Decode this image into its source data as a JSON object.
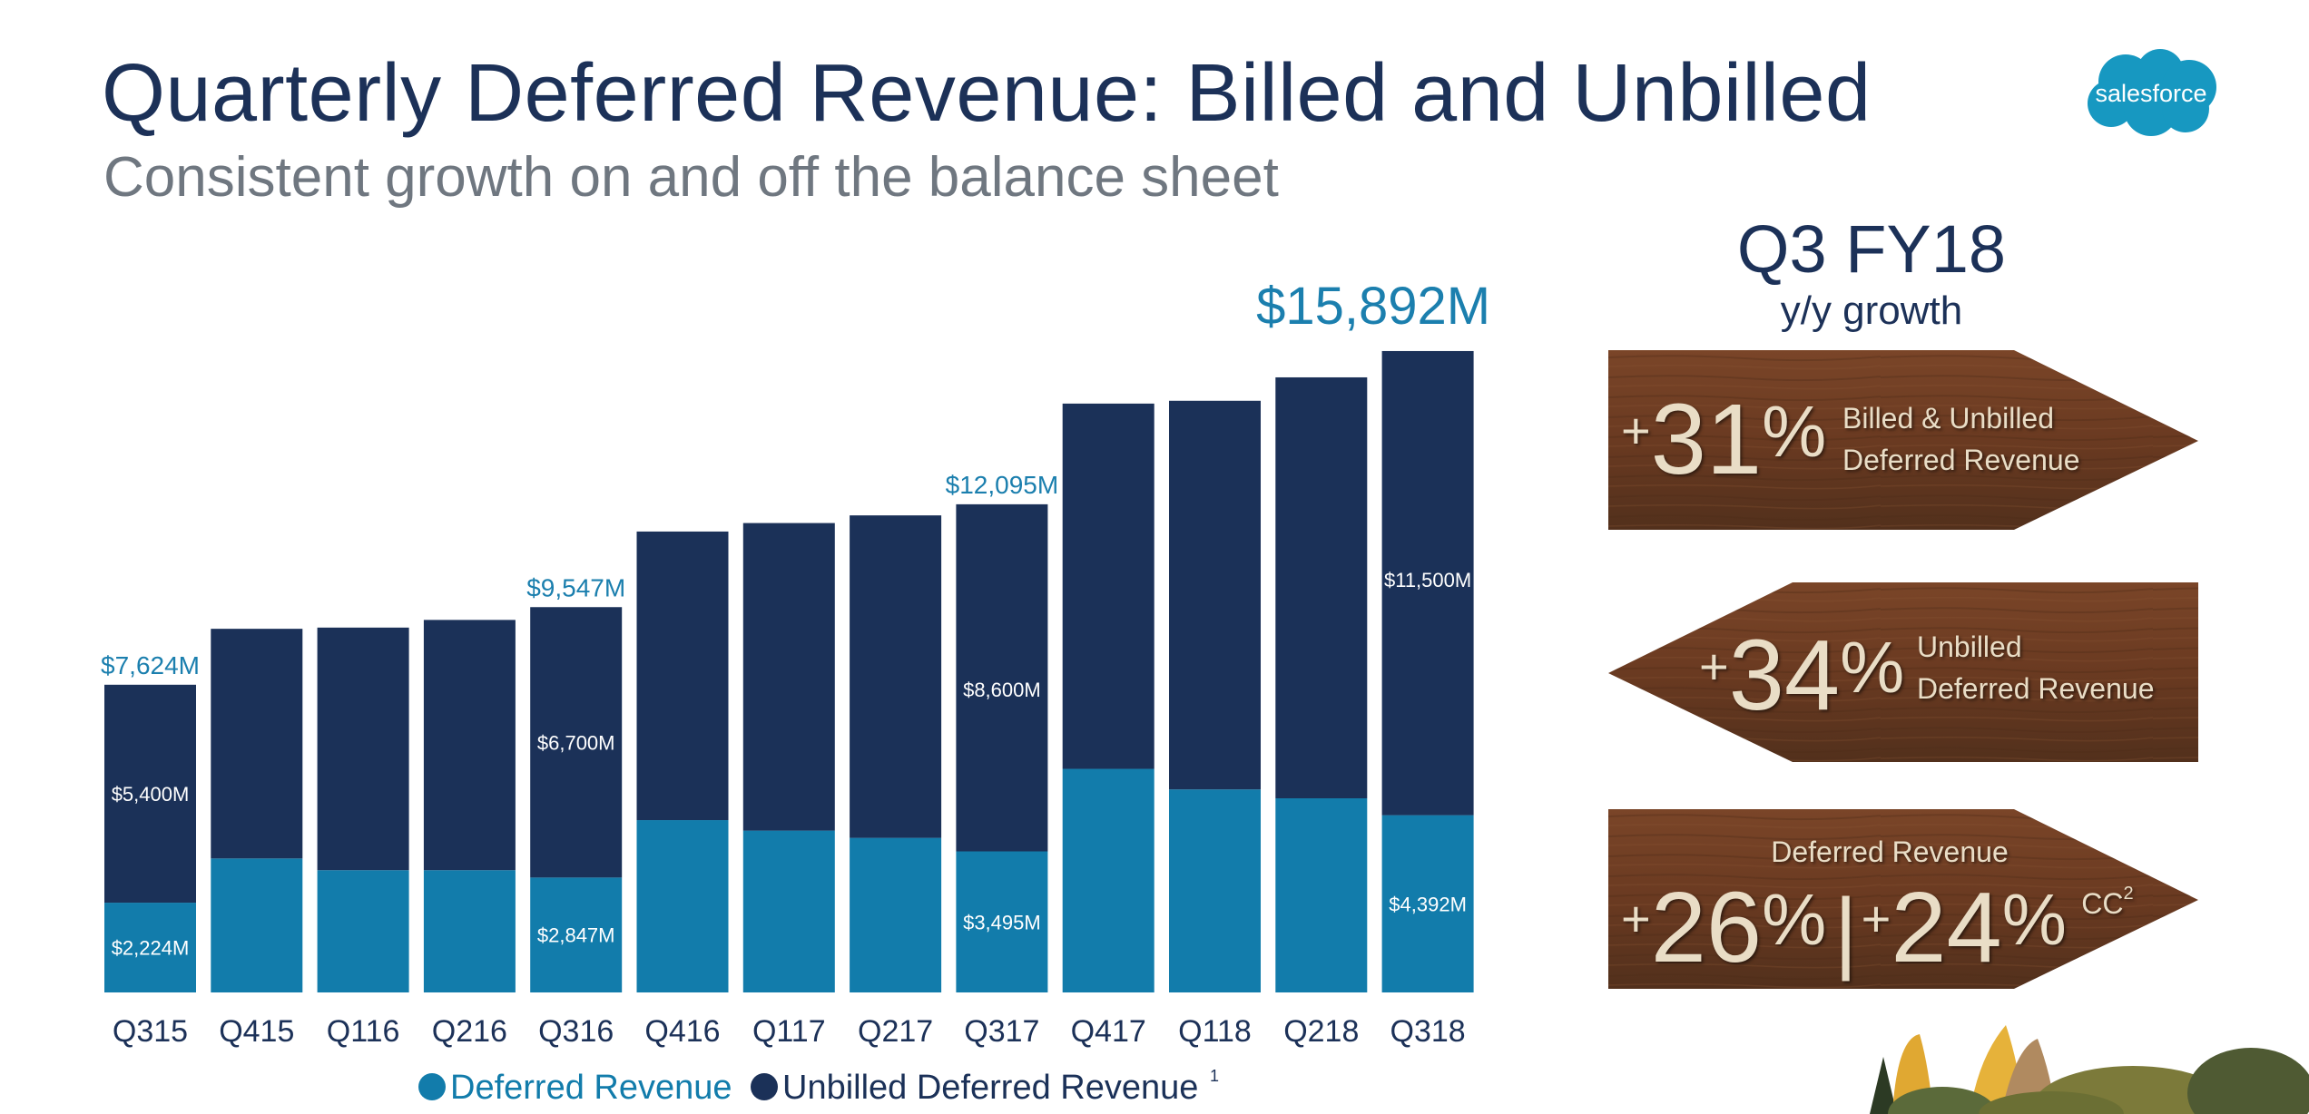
{
  "header": {
    "title": "Quarterly Deferred Revenue: Billed and Unbilled",
    "subtitle": "Consistent growth on and off the balance sheet",
    "logo_text": "salesforce"
  },
  "colors": {
    "deferred": "#127cab",
    "unbilled": "#1b3158",
    "total_label": "#1b7fae",
    "title": "#1c3158",
    "wood": "#6b3b22",
    "sign_text": "#e9ddc6"
  },
  "chart_data": {
    "type": "bar",
    "stacked": true,
    "categories": [
      "Q315",
      "Q415",
      "Q116",
      "Q216",
      "Q316",
      "Q416",
      "Q117",
      "Q217",
      "Q317",
      "Q417",
      "Q118",
      "Q218",
      "Q318"
    ],
    "series": [
      {
        "name": "Deferred Revenue",
        "values": [
          2224,
          3320,
          3030,
          3030,
          2847,
          4270,
          4010,
          3830,
          3495,
          5540,
          5030,
          4810,
          4392
        ]
      },
      {
        "name": "Unbilled Deferred Revenue",
        "values": [
          5400,
          5690,
          6010,
          6200,
          6700,
          7150,
          7620,
          7990,
          8600,
          9050,
          9630,
          10430,
          11500
        ]
      }
    ],
    "segment_labels": {
      "Q315": {
        "deferred": "$2,224M",
        "unbilled": "$5,400M"
      },
      "Q316": {
        "deferred": "$2,847M",
        "unbilled": "$6,700M"
      },
      "Q317": {
        "deferred": "$3,495M",
        "unbilled": "$8,600M"
      },
      "Q318": {
        "deferred": "$4,392M",
        "unbilled": "$11,500M"
      }
    },
    "total_labels": {
      "Q315": "$7,624M",
      "Q316": "$9,547M",
      "Q317": "$12,095M",
      "Q318": "$15,892M"
    },
    "legend": {
      "placement": "bottom",
      "entries": [
        "Deferred Revenue",
        "Unbilled Deferred Revenue"
      ],
      "footnote": "1"
    },
    "ylim": [
      0,
      16000
    ],
    "grid": false,
    "y_axis_visible": false
  },
  "panel": {
    "heading": "Q3 FY18",
    "subheading": "y/y growth",
    "signs": [
      {
        "plus": "+",
        "value": "31",
        "pct": "%",
        "label1": "Billed & Unbilled",
        "label2": "Deferred Revenue",
        "direction": "right"
      },
      {
        "plus": "+",
        "value": "34",
        "pct": "%",
        "label1": "Unbilled",
        "label2": "Deferred Revenue",
        "direction": "left"
      },
      {
        "title": "Deferred Revenue",
        "plus": "+",
        "value": "26",
        "pct": "%",
        "sep": "|",
        "plus2": "+",
        "value2": "24",
        "pct2": "%",
        "cc": "CC",
        "cc_sup": "2",
        "direction": "right"
      }
    ]
  }
}
